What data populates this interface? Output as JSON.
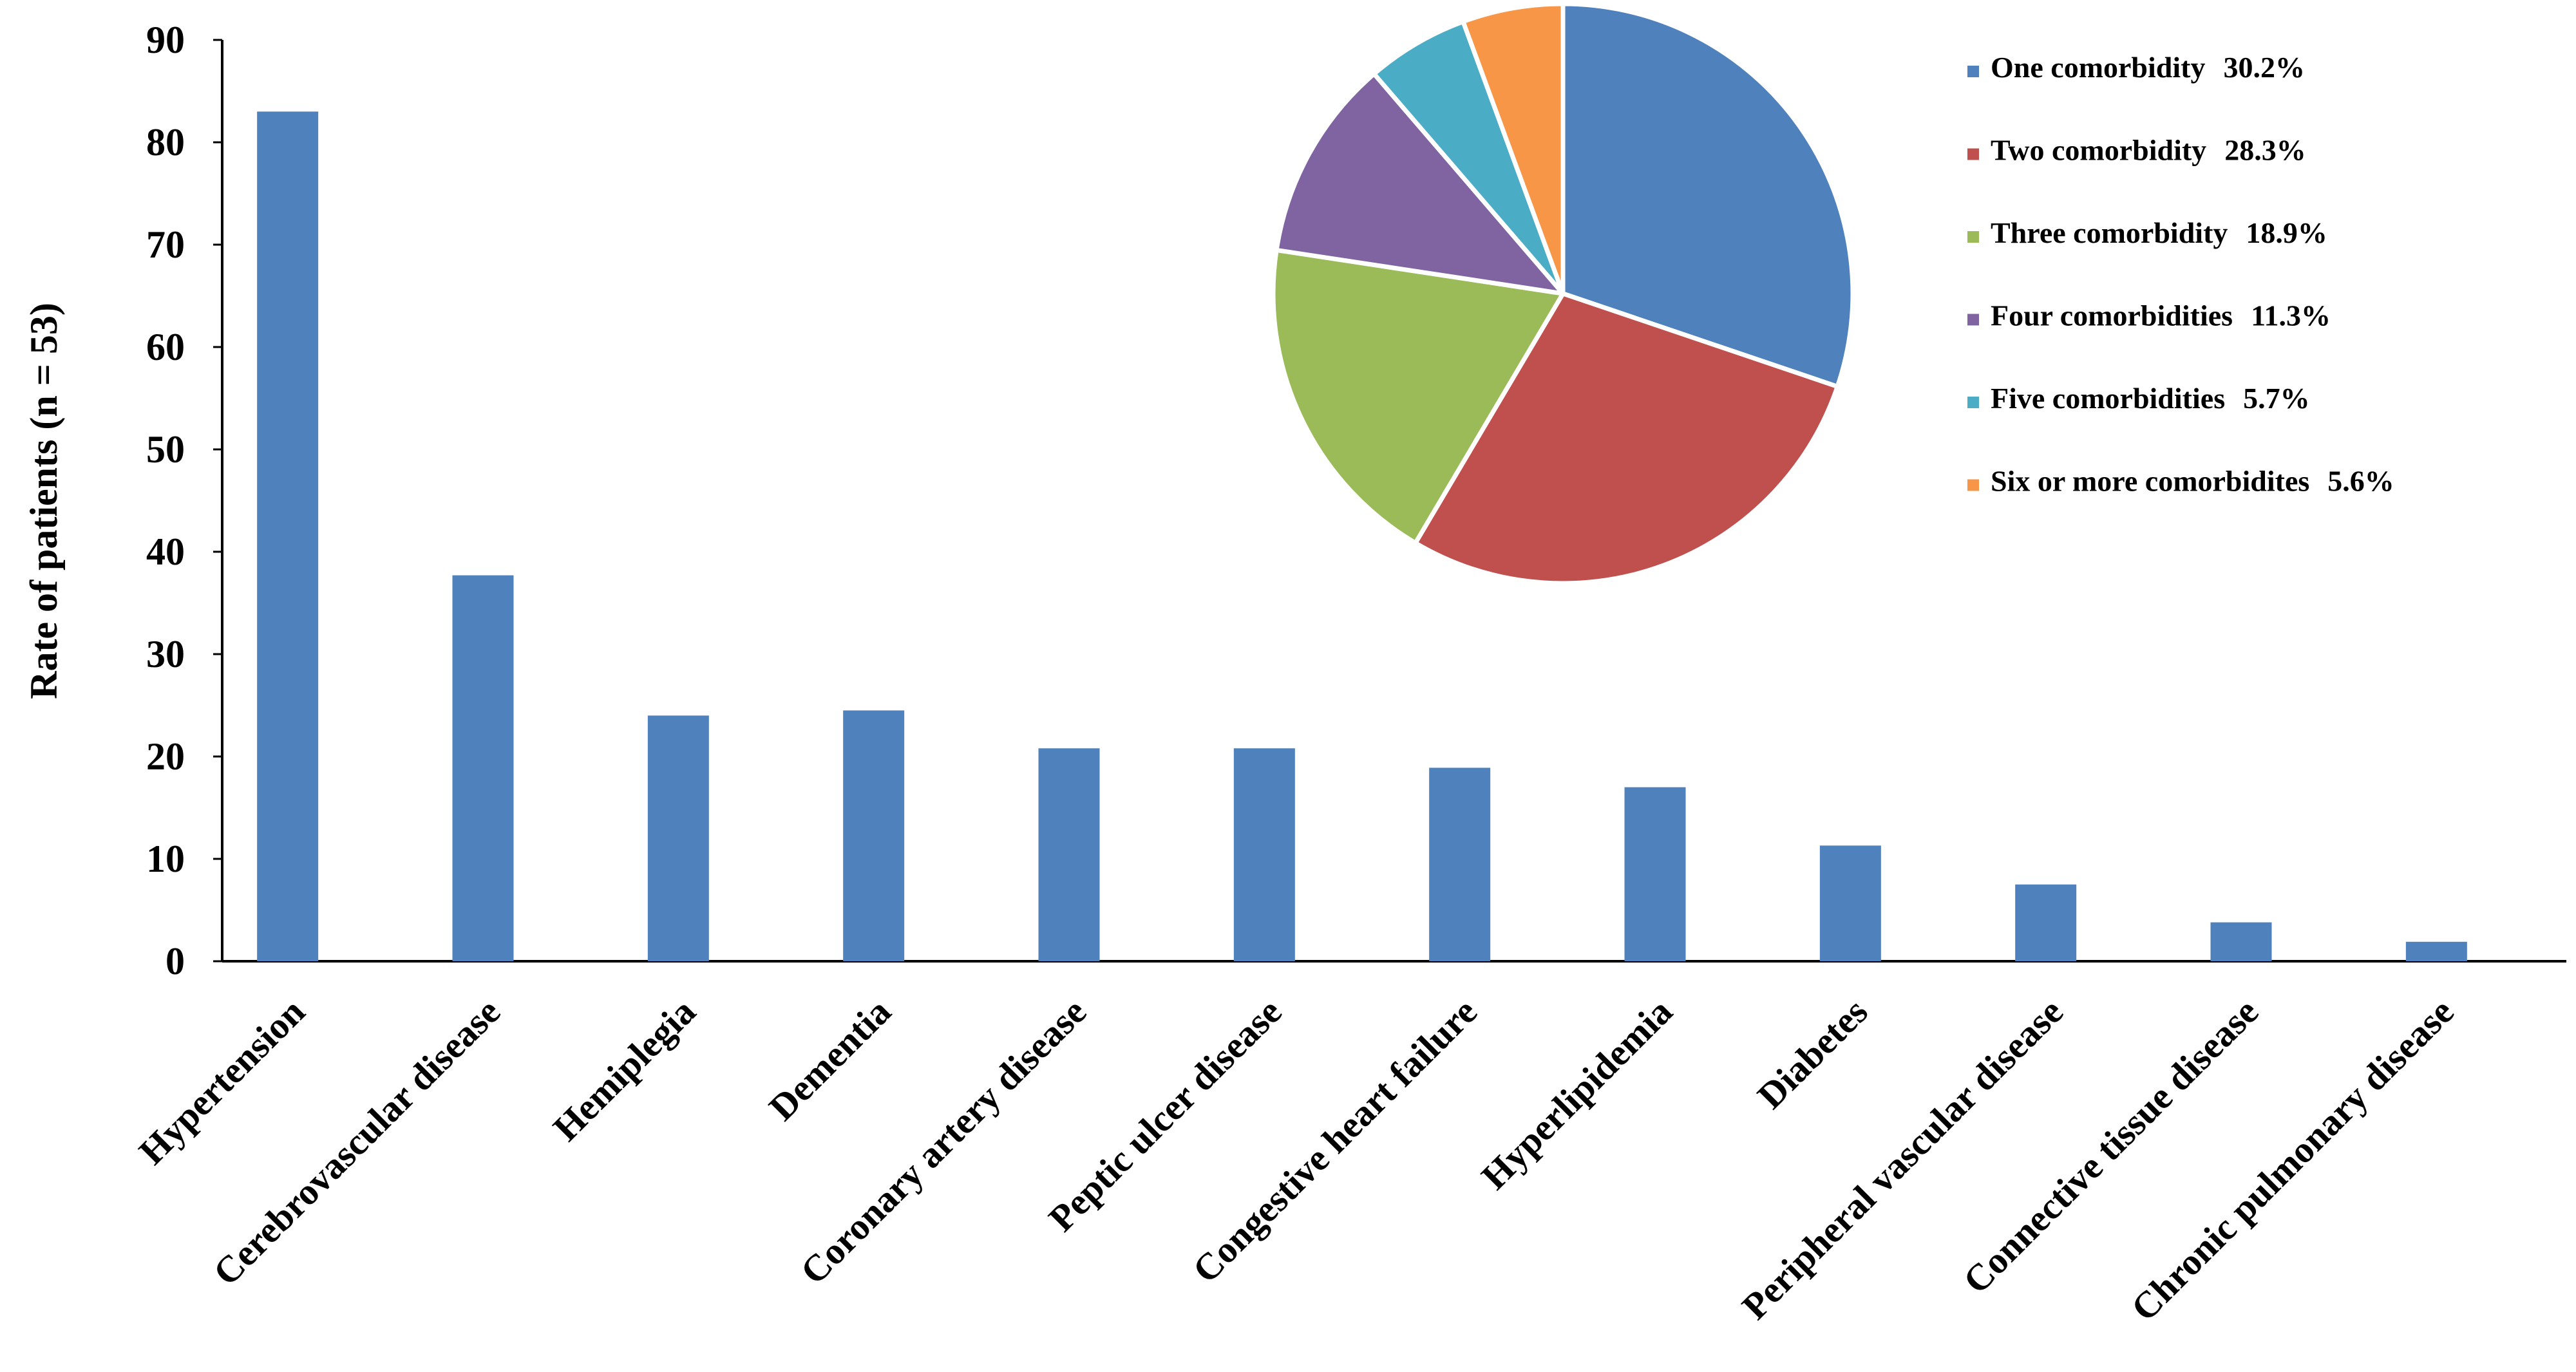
{
  "chart_data": [
    {
      "type": "bar",
      "categories": [
        "Hypertension",
        "Cerebrovascular disease",
        "Hemiplegia",
        "Dementia",
        "Coronary artery disease",
        "Peptic ulcer disease",
        "Congestive heart failure",
        "Hyperlipidemia",
        "Diabetes",
        "Peripheral vascular disease",
        "Connective tissue disease",
        "Chronic pulmonary disease"
      ],
      "values": [
        83,
        37.7,
        24,
        24.5,
        20.8,
        20.8,
        18.9,
        17,
        11.3,
        7.5,
        3.8,
        1.9
      ],
      "title": "",
      "xlabel": "",
      "ylabel": "Rate of patients (n = 53)",
      "ylim": [
        0,
        90
      ],
      "yticks": [
        0,
        10,
        20,
        30,
        40,
        50,
        60,
        70,
        80,
        90
      ],
      "grid": false,
      "color": "#4F81BD"
    },
    {
      "type": "pie",
      "slices": [
        {
          "label": "One comorbidity",
          "value_label": "30.2%",
          "value": 30.2,
          "color": "#4F81BD"
        },
        {
          "label": "Two comorbidity",
          "value_label": "28.3%",
          "value": 28.3,
          "color": "#C0504D"
        },
        {
          "label": "Three comorbidity",
          "value_label": "18.9%",
          "value": 18.9,
          "color": "#9BBB59"
        },
        {
          "label": "Four comorbidities",
          "value_label": "11.3%",
          "value": 11.3,
          "color": "#8064A2"
        },
        {
          "label": "Five comorbidities",
          "value_label": "5.7%",
          "value": 5.7,
          "color": "#4BACC6"
        },
        {
          "label": "Six or more comorbidites",
          "value_label": "5.6%",
          "value": 5.6,
          "color": "#F79646"
        }
      ],
      "legend_position": "right"
    }
  ]
}
